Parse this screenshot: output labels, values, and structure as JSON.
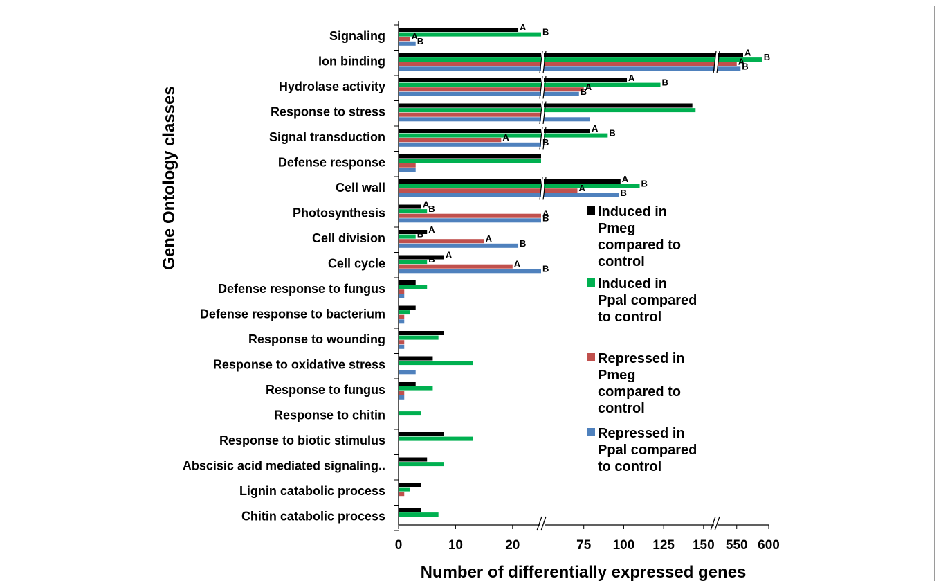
{
  "chart_data": {
    "type": "bar",
    "orientation": "horizontal",
    "ylabel": "Gene Ontology classes",
    "xlabel": "Number of differentially expressed genes",
    "x_tick_labels": [
      "0",
      "10",
      "20",
      "75",
      "100",
      "125",
      "150",
      "550",
      "600"
    ],
    "axis_breaks": [
      "between 20 and 75",
      "between 150 and 550"
    ],
    "legend_position": "right",
    "categories": [
      "Signaling",
      "Ion binding",
      "Hydrolase activity",
      "Response to stress",
      "Signal transduction",
      "Defense response",
      "Cell wall",
      "Photosynthesis",
      "Cell division",
      "Cell cycle",
      "Defense response to fungus",
      "Defense response to bacterium",
      "Response to wounding",
      "Response to oxidative stress",
      "Response to fungus",
      "Response to chitin",
      "Response to biotic stimulus",
      "Abscisic acid mediated signaling..",
      "Lignin catabolic process",
      "Chitin catabolic process"
    ],
    "series": [
      {
        "name": "Induced in Pmeg compared to control",
        "color": "#000000",
        "values": [
          21,
          560,
          102,
          143,
          79,
          25,
          98,
          4,
          5,
          8,
          3,
          3,
          8,
          6,
          3,
          0,
          8,
          5,
          4,
          4
        ]
      },
      {
        "name": "Induced in Ppal compared to control",
        "color": "#00b050",
        "values": [
          25,
          590,
          123,
          145,
          90,
          25,
          110,
          5,
          3,
          5,
          5,
          2,
          7,
          13,
          6,
          4,
          13,
          8,
          2,
          7
        ]
      },
      {
        "name": "Repressed in Pmeg compared to control",
        "color": "#c0504d",
        "values": [
          2,
          550,
          75,
          25,
          18,
          3,
          71,
          25,
          15,
          20,
          1,
          1,
          1,
          0,
          1,
          0,
          0,
          0,
          1,
          0
        ]
      },
      {
        "name": "Repressed in Ppal compared to control",
        "color": "#4f81bd",
        "values": [
          3,
          556,
          72,
          79,
          25,
          3,
          97,
          25,
          21,
          25,
          1,
          1,
          1,
          3,
          1,
          0,
          0,
          0,
          0,
          0
        ]
      }
    ],
    "significance_labels": [
      {
        "category": "Signaling",
        "series": 0,
        "text": "A"
      },
      {
        "category": "Signaling",
        "series": 1,
        "text": "B"
      },
      {
        "category": "Signaling",
        "series": 2,
        "text": "A"
      },
      {
        "category": "Signaling",
        "series": 3,
        "text": "B"
      },
      {
        "category": "Ion binding",
        "series": 0,
        "text": "A"
      },
      {
        "category": "Ion binding",
        "series": 1,
        "text": "B"
      },
      {
        "category": "Ion binding",
        "series": 2,
        "text": "A"
      },
      {
        "category": "Ion binding",
        "series": 3,
        "text": "B"
      },
      {
        "category": "Hydrolase activity",
        "series": 0,
        "text": "A"
      },
      {
        "category": "Hydrolase activity",
        "series": 1,
        "text": "B"
      },
      {
        "category": "Hydrolase activity",
        "series": 2,
        "text": "A"
      },
      {
        "category": "Hydrolase activity",
        "series": 3,
        "text": "B"
      },
      {
        "category": "Signal transduction",
        "series": 0,
        "text": "A"
      },
      {
        "category": "Signal transduction",
        "series": 1,
        "text": "B"
      },
      {
        "category": "Signal transduction",
        "series": 2,
        "text": "A"
      },
      {
        "category": "Signal transduction",
        "series": 3,
        "text": "B"
      },
      {
        "category": "Cell wall",
        "series": 0,
        "text": "A"
      },
      {
        "category": "Cell wall",
        "series": 1,
        "text": "B"
      },
      {
        "category": "Cell wall",
        "series": 2,
        "text": "A"
      },
      {
        "category": "Cell wall",
        "series": 3,
        "text": "B"
      },
      {
        "category": "Photosynthesis",
        "series": 0,
        "text": "A"
      },
      {
        "category": "Photosynthesis",
        "series": 1,
        "text": "B"
      },
      {
        "category": "Photosynthesis",
        "series": 2,
        "text": "A"
      },
      {
        "category": "Photosynthesis",
        "series": 3,
        "text": "B"
      },
      {
        "category": "Cell division",
        "series": 0,
        "text": "A"
      },
      {
        "category": "Cell division",
        "series": 1,
        "text": "B"
      },
      {
        "category": "Cell division",
        "series": 2,
        "text": "A"
      },
      {
        "category": "Cell division",
        "series": 3,
        "text": "B"
      },
      {
        "category": "Cell cycle",
        "series": 0,
        "text": "A"
      },
      {
        "category": "Cell cycle",
        "series": 1,
        "text": "B"
      },
      {
        "category": "Cell cycle",
        "series": 2,
        "text": "A"
      },
      {
        "category": "Cell cycle",
        "series": 3,
        "text": "B"
      }
    ],
    "legend": [
      {
        "lines": [
          "Induced in",
          "Pmeg",
          "compared to",
          "control"
        ],
        "color": "#000000"
      },
      {
        "lines": [
          "Induced in",
          "Ppal compared",
          "to control"
        ],
        "color": "#00b050"
      },
      {
        "lines": [
          "Repressed in",
          "Pmeg",
          "compared to",
          "control"
        ],
        "color": "#c0504d"
      },
      {
        "lines": [
          "Repressed in",
          "Ppal compared",
          "to control"
        ],
        "color": "#4f81bd"
      }
    ]
  }
}
